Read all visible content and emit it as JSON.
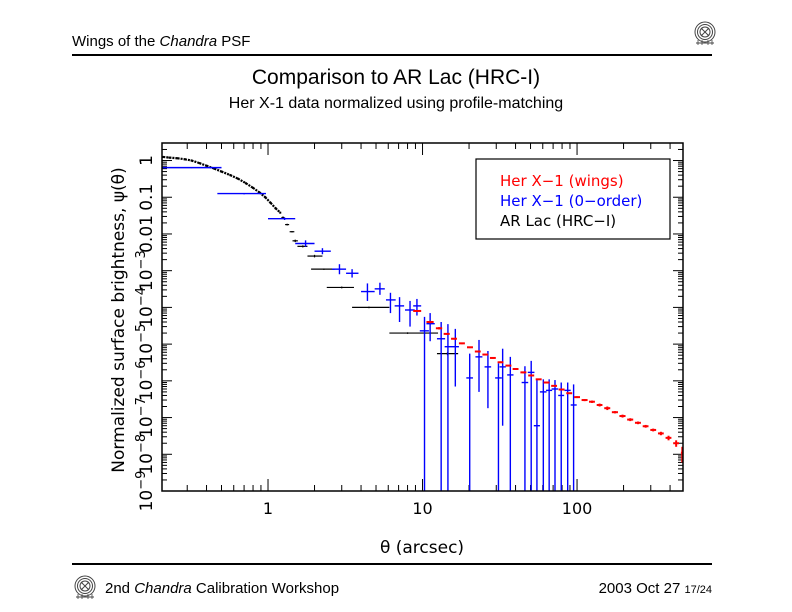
{
  "header": {
    "title_prefix": "Wings of the ",
    "title_italic": "Chandra",
    "title_suffix": " PSF",
    "logo": "chandra-logo-icon"
  },
  "slide": {
    "title": "Comparison to AR Lac (HRC-I)",
    "subtitle": "Her X-1 data normalized using profile-matching"
  },
  "footer": {
    "left_prefix": "2nd ",
    "left_italic": "Chandra",
    "left_suffix": " Calibration Workshop",
    "date": "2003 Oct 27",
    "page": "17/24",
    "logo": "chandra-logo-icon"
  },
  "chart_data": {
    "type": "scatter",
    "title": "",
    "xlabel": "θ (arcsec)",
    "ylabel": "Normalized surface brightness, ψ(θ)",
    "xscale": "log",
    "yscale": "log",
    "xlim": [
      0.206,
      485
    ],
    "ylim": [
      1e-09,
      3
    ],
    "x_ticks": [
      {
        "value": 1,
        "label": "1"
      },
      {
        "value": 10,
        "label": "10"
      },
      {
        "value": 100,
        "label": "100"
      }
    ],
    "y_ticks": [
      {
        "value": 1e-09,
        "base": "10",
        "exp": "−9"
      },
      {
        "value": 1e-08,
        "base": "10",
        "exp": "−8"
      },
      {
        "value": 1e-07,
        "base": "10",
        "exp": "−7"
      },
      {
        "value": 1e-06,
        "base": "10",
        "exp": "−6"
      },
      {
        "value": 1e-05,
        "base": "10",
        "exp": "−5"
      },
      {
        "value": 0.0001,
        "base": "10",
        "exp": "−4"
      },
      {
        "value": 0.001,
        "base": "10",
        "exp": "−3"
      },
      {
        "value": 0.01,
        "base": "0.01",
        "exp": ""
      },
      {
        "value": 0.1,
        "base": "0.1",
        "exp": ""
      },
      {
        "value": 1,
        "base": "1",
        "exp": ""
      }
    ],
    "legend": {
      "position": "top-right",
      "entries": [
        {
          "label": "Her X−1 (wings)",
          "color": "#ff0000"
        },
        {
          "label": "Her X−1 (0−order)",
          "color": "#0000ff"
        },
        {
          "label": "AR Lac (HRC−I)",
          "color": "#000000"
        }
      ]
    },
    "series": [
      {
        "name": "AR Lac (HRC−I) profile",
        "color": "#000000",
        "style": "dense",
        "points": [
          {
            "x": 0.21,
            "y": 1.25
          },
          {
            "x": 0.23,
            "y": 1.2
          },
          {
            "x": 0.26,
            "y": 1.15
          },
          {
            "x": 0.29,
            "y": 1.08
          },
          {
            "x": 0.32,
            "y": 1.0
          },
          {
            "x": 0.36,
            "y": 0.85
          },
          {
            "x": 0.4,
            "y": 0.72
          },
          {
            "x": 0.45,
            "y": 0.6
          },
          {
            "x": 0.5,
            "y": 0.5
          },
          {
            "x": 0.57,
            "y": 0.4
          },
          {
            "x": 0.64,
            "y": 0.32
          },
          {
            "x": 0.72,
            "y": 0.24
          },
          {
            "x": 0.8,
            "y": 0.18
          },
          {
            "x": 0.88,
            "y": 0.135
          },
          {
            "x": 0.96,
            "y": 0.1
          },
          {
            "x": 1.04,
            "y": 0.07
          },
          {
            "x": 1.12,
            "y": 0.05
          },
          {
            "x": 1.2,
            "y": 0.038
          }
        ]
      },
      {
        "name": "AR Lac (HRC−I) binned",
        "color": "#000000",
        "style": "errorbar",
        "points": [
          {
            "x": 1.25,
            "y": 0.028,
            "xlo": 1.22,
            "xhi": 1.28,
            "ylo": 0.026,
            "yhi": 0.03
          },
          {
            "x": 1.33,
            "y": 0.018,
            "xlo": 1.29,
            "xhi": 1.37,
            "ylo": 0.017,
            "yhi": 0.019
          },
          {
            "x": 1.43,
            "y": 0.0115,
            "xlo": 1.38,
            "xhi": 1.48,
            "ylo": 0.011,
            "yhi": 0.012
          },
          {
            "x": 1.5,
            "y": 0.0065,
            "xlo": 1.44,
            "xhi": 1.56,
            "ylo": 0.006,
            "yhi": 0.007
          },
          {
            "x": 1.68,
            "y": 0.0046,
            "xlo": 1.55,
            "xhi": 1.8,
            "ylo": 0.0043,
            "yhi": 0.0049
          },
          {
            "x": 2.0,
            "y": 0.0025,
            "xlo": 1.8,
            "xhi": 2.25,
            "ylo": 0.0023,
            "yhi": 0.0027
          },
          {
            "x": 2.3,
            "y": 0.0011,
            "xlo": 1.9,
            "xhi": 2.7,
            "ylo": 0.00105,
            "yhi": 0.00115
          },
          {
            "x": 3.0,
            "y": 0.00035,
            "xlo": 2.4,
            "xhi": 3.6,
            "ylo": 0.00033,
            "yhi": 0.00037
          },
          {
            "x": 4.5,
            "y": 0.0001,
            "xlo": 3.5,
            "xhi": 6.1,
            "ylo": 9.5e-05,
            "yhi": 0.000105
          },
          {
            "x": 8.0,
            "y": 2e-05,
            "xlo": 6.1,
            "xhi": 12.6,
            "ylo": 1.9e-05,
            "yhi": 2.1e-05
          },
          {
            "x": 14.5,
            "y": 5.5e-06,
            "xlo": 12.4,
            "xhi": 17.0,
            "ylo": 5e-06,
            "yhi": 6e-06
          }
        ]
      },
      {
        "name": "Her X−1 (0−order)",
        "color": "#0000ff",
        "style": "errorbar",
        "points": [
          {
            "x": 0.32,
            "y": 0.64,
            "xlo": 0.206,
            "xhi": 0.5,
            "ylo": 0.62,
            "yhi": 0.66
          },
          {
            "x": 0.7,
            "y": 0.126,
            "xlo": 0.47,
            "xhi": 0.97,
            "ylo": 0.12,
            "yhi": 0.13
          },
          {
            "x": 1.28,
            "y": 0.026,
            "xlo": 1.0,
            "xhi": 1.5,
            "ylo": 0.024,
            "yhi": 0.028
          },
          {
            "x": 1.75,
            "y": 0.0055,
            "xlo": 1.5,
            "xhi": 2.0,
            "ylo": 0.0045,
            "yhi": 0.0067
          },
          {
            "x": 2.25,
            "y": 0.0034,
            "xlo": 2.0,
            "xhi": 2.55,
            "ylo": 0.0028,
            "yhi": 0.0041
          },
          {
            "x": 2.9,
            "y": 0.0011,
            "xlo": 2.6,
            "xhi": 3.2,
            "ylo": 0.0008,
            "yhi": 0.0015
          },
          {
            "x": 3.5,
            "y": 0.00085,
            "xlo": 3.2,
            "xhi": 3.85,
            "ylo": 0.00065,
            "yhi": 0.0011
          },
          {
            "x": 4.4,
            "y": 0.00027,
            "xlo": 4.0,
            "xhi": 4.9,
            "ylo": 0.00015,
            "yhi": 0.00045
          },
          {
            "x": 5.3,
            "y": 0.00032,
            "xlo": 4.9,
            "xhi": 5.7,
            "ylo": 0.00022,
            "yhi": 0.00047
          },
          {
            "x": 6.2,
            "y": 0.00016,
            "xlo": 5.8,
            "xhi": 6.7,
            "ylo": 7e-05,
            "yhi": 0.00025
          },
          {
            "x": 7.1,
            "y": 0.00011,
            "xlo": 6.6,
            "xhi": 7.6,
            "ylo": 4e-05,
            "yhi": 0.00019
          },
          {
            "x": 8.3,
            "y": 8.5e-05,
            "xlo": 7.7,
            "xhi": 8.9,
            "ylo": 3e-05,
            "yhi": 0.00015
          },
          {
            "x": 9.2,
            "y": 0.00011,
            "xlo": 8.7,
            "xhi": 9.8,
            "ylo": 6e-05,
            "yhi": 0.00017
          },
          {
            "x": 10.3,
            "y": 2.3e-05,
            "xlo": 9.6,
            "xhi": 11.0,
            "ylo": 1e-09,
            "yhi": 5.5e-05
          },
          {
            "x": 11.2,
            "y": 3.6e-05,
            "xlo": 10.6,
            "xhi": 12.0,
            "ylo": 1.2e-05,
            "yhi": 7e-05
          },
          {
            "x": 13.2,
            "y": 1.4e-05,
            "xlo": 12.4,
            "xhi": 14.0,
            "ylo": 1e-09,
            "yhi": 4e-05
          },
          {
            "x": 14.6,
            "y": 8.5e-06,
            "xlo": 13.9,
            "xhi": 15.4,
            "ylo": 1e-09,
            "yhi": 3.5e-05
          },
          {
            "x": 16.3,
            "y": 8.5e-06,
            "xlo": 15.4,
            "xhi": 17.2,
            "ylo": 7e-07,
            "yhi": 2.6e-05
          },
          {
            "x": 20.2,
            "y": 1.2e-06,
            "xlo": 19.2,
            "xhi": 21.2,
            "ylo": 1e-09,
            "yhi": 5.5e-06
          },
          {
            "x": 23.2,
            "y": 4.5e-06,
            "xlo": 22.0,
            "xhi": 24.4,
            "ylo": 5e-07,
            "yhi": 1.3e-05
          },
          {
            "x": 26.5,
            "y": 2.4e-06,
            "xlo": 25.2,
            "xhi": 27.8,
            "ylo": 1.8e-07,
            "yhi": 6.5e-06
          },
          {
            "x": 31.0,
            "y": 1.2e-06,
            "xlo": 29.5,
            "xhi": 32.6,
            "ylo": 1e-09,
            "yhi": 3e-06
          },
          {
            "x": 33.0,
            "y": 2.4e-06,
            "xlo": 31.5,
            "xhi": 34.6,
            "ylo": 6e-08,
            "yhi": 7.5e-06
          },
          {
            "x": 37.0,
            "y": 1.45e-06,
            "xlo": 35.3,
            "xhi": 38.8,
            "ylo": 1e-09,
            "yhi": 4.5e-06
          },
          {
            "x": 46.0,
            "y": 9e-07,
            "xlo": 43.8,
            "xhi": 48.3,
            "ylo": 1e-09,
            "yhi": 2.5e-06
          },
          {
            "x": 50.5,
            "y": 1.7e-06,
            "xlo": 48.0,
            "xhi": 53.0,
            "ylo": 1e-09,
            "yhi": 3.5e-06
          },
          {
            "x": 55.0,
            "y": 6e-08,
            "xlo": 52.5,
            "xhi": 57.5,
            "ylo": 1e-09,
            "yhi": 1.1e-06
          },
          {
            "x": 60.5,
            "y": 5e-07,
            "xlo": 57.5,
            "xhi": 63.5,
            "ylo": 1e-09,
            "yhi": 1.1e-06
          },
          {
            "x": 66.0,
            "y": 5.5e-07,
            "xlo": 63.0,
            "xhi": 69.0,
            "ylo": 1e-09,
            "yhi": 1.1e-06
          },
          {
            "x": 72.0,
            "y": 6e-07,
            "xlo": 68.5,
            "xhi": 75.5,
            "ylo": 1e-09,
            "yhi": 1.05e-06
          },
          {
            "x": 79.0,
            "y": 4e-07,
            "xlo": 75.5,
            "xhi": 82.5,
            "ylo": 1e-09,
            "yhi": 9e-07
          },
          {
            "x": 87.0,
            "y": 5.5e-07,
            "xlo": 83.0,
            "xhi": 91.0,
            "ylo": 1e-09,
            "yhi": 9e-07
          },
          {
            "x": 95.0,
            "y": 2.2e-07,
            "xlo": 91.0,
            "xhi": 99.5,
            "ylo": 1e-09,
            "yhi": 8e-07
          }
        ]
      },
      {
        "name": "Her X−1 (wings)",
        "color": "#ff0000",
        "style": "errorbar",
        "points": [
          {
            "x": 9.2,
            "y": 8e-05,
            "xlo": 8.7,
            "xhi": 9.8,
            "ylo": 7.5e-05,
            "yhi": 8.5e-05
          },
          {
            "x": 11.2,
            "y": 4e-05,
            "xlo": 10.6,
            "xhi": 11.8,
            "ylo": 3.7e-05,
            "yhi": 4.3e-05
          },
          {
            "x": 12.8,
            "y": 2.7e-05,
            "xlo": 12.2,
            "xhi": 13.4,
            "ylo": 2.5e-05,
            "yhi": 2.9e-05
          },
          {
            "x": 14.3,
            "y": 1.9e-05,
            "xlo": 13.7,
            "xhi": 15.0,
            "ylo": 1.8e-05,
            "yhi": 2e-05
          },
          {
            "x": 16.0,
            "y": 1.4e-05,
            "xlo": 15.3,
            "xhi": 16.7,
            "ylo": 1.33e-05,
            "yhi": 1.47e-05
          },
          {
            "x": 18.0,
            "y": 1.05e-05,
            "xlo": 17.2,
            "xhi": 18.8,
            "ylo": 1e-05,
            "yhi": 1.1e-05
          },
          {
            "x": 20.3,
            "y": 8.2e-06,
            "xlo": 19.4,
            "xhi": 21.2,
            "ylo": 7.8e-06,
            "yhi": 8.6e-06
          },
          {
            "x": 22.8,
            "y": 6.3e-06,
            "xlo": 21.8,
            "xhi": 23.8,
            "ylo": 6e-06,
            "yhi": 6.6e-06
          },
          {
            "x": 25.5,
            "y": 5.2e-06,
            "xlo": 24.4,
            "xhi": 26.6,
            "ylo": 5e-06,
            "yhi": 5.4e-06
          },
          {
            "x": 28.5,
            "y": 4.2e-06,
            "xlo": 27.3,
            "xhi": 29.8,
            "ylo": 4e-06,
            "yhi": 4.4e-06
          },
          {
            "x": 32.0,
            "y": 3.2e-06,
            "xlo": 30.6,
            "xhi": 33.4,
            "ylo": 3.1e-06,
            "yhi": 3.4e-06
          },
          {
            "x": 36.0,
            "y": 2.6e-06,
            "xlo": 34.4,
            "xhi": 37.6,
            "ylo": 2.5e-06,
            "yhi": 2.7e-06
          },
          {
            "x": 40.0,
            "y": 2.1e-06,
            "xlo": 38.3,
            "xhi": 41.8,
            "ylo": 2e-06,
            "yhi": 2.2e-06
          },
          {
            "x": 45.0,
            "y": 1.7e-06,
            "xlo": 43.0,
            "xhi": 47.0,
            "ylo": 1.6e-06,
            "yhi": 1.8e-06
          },
          {
            "x": 50.5,
            "y": 1.4e-06,
            "xlo": 48.3,
            "xhi": 52.8,
            "ylo": 1.33e-06,
            "yhi": 1.47e-06
          },
          {
            "x": 56.5,
            "y": 1.1e-06,
            "xlo": 54.0,
            "xhi": 59.0,
            "ylo": 1.05e-06,
            "yhi": 1.15e-06
          },
          {
            "x": 63.5,
            "y": 9e-07,
            "xlo": 60.7,
            "xhi": 66.3,
            "ylo": 8.6e-07,
            "yhi": 9.4e-07
          },
          {
            "x": 71.0,
            "y": 7.3e-07,
            "xlo": 68.0,
            "xhi": 74.2,
            "ylo": 7e-07,
            "yhi": 7.6e-07
          },
          {
            "x": 79.5,
            "y": 5.8e-07,
            "xlo": 76.0,
            "xhi": 83.0,
            "ylo": 5.5e-07,
            "yhi": 6.1e-07
          },
          {
            "x": 89.0,
            "y": 4.6e-07,
            "xlo": 85.2,
            "xhi": 93.0,
            "ylo": 4.4e-07,
            "yhi": 4.8e-07
          },
          {
            "x": 100.0,
            "y": 3.6e-07,
            "xlo": 95.7,
            "xhi": 104.5,
            "ylo": 3.4e-07,
            "yhi": 3.8e-07
          },
          {
            "x": 112.0,
            "y": 3e-07,
            "xlo": 107.0,
            "xhi": 117.0,
            "ylo": 2.8e-07,
            "yhi": 3.2e-07
          },
          {
            "x": 125.0,
            "y": 2.7e-07,
            "xlo": 119.5,
            "xhi": 130.5,
            "ylo": 2.5e-07,
            "yhi": 2.9e-07
          },
          {
            "x": 140.0,
            "y": 2.2e-07,
            "xlo": 134.0,
            "xhi": 146.0,
            "ylo": 2e-07,
            "yhi": 2.4e-07
          },
          {
            "x": 157.0,
            "y": 1.8e-07,
            "xlo": 150.0,
            "xhi": 164.0,
            "ylo": 1.6e-07,
            "yhi": 2e-07
          },
          {
            "x": 176.0,
            "y": 1.4e-07,
            "xlo": 168.0,
            "xhi": 184.0,
            "ylo": 1.3e-07,
            "yhi": 1.5e-07
          },
          {
            "x": 197.0,
            "y": 1.1e-07,
            "xlo": 188.0,
            "xhi": 206.0,
            "ylo": 1e-07,
            "yhi": 1.2e-07
          },
          {
            "x": 221.0,
            "y": 8.8e-08,
            "xlo": 211.0,
            "xhi": 231.0,
            "ylo": 8e-08,
            "yhi": 9.6e-08
          },
          {
            "x": 248.0,
            "y": 7.2e-08,
            "xlo": 237.0,
            "xhi": 259.0,
            "ylo": 6.6e-08,
            "yhi": 7.8e-08
          },
          {
            "x": 278.0,
            "y": 5.8e-08,
            "xlo": 266.0,
            "xhi": 290.0,
            "ylo": 5.3e-08,
            "yhi": 6.3e-08
          },
          {
            "x": 311.0,
            "y": 4.6e-08,
            "xlo": 298.0,
            "xhi": 325.0,
            "ylo": 4.2e-08,
            "yhi": 5e-08
          },
          {
            "x": 349.0,
            "y": 3.7e-08,
            "xlo": 334.0,
            "xhi": 364.0,
            "ylo": 3.3e-08,
            "yhi": 4.1e-08
          },
          {
            "x": 391.0,
            "y": 2.8e-08,
            "xlo": 374.0,
            "xhi": 408.0,
            "ylo": 2.4e-08,
            "yhi": 3.2e-08
          },
          {
            "x": 438.0,
            "y": 2e-08,
            "xlo": 419.0,
            "xhi": 457.0,
            "ylo": 1.6e-08,
            "yhi": 2.4e-08
          },
          {
            "x": 480.0,
            "y": 1.1e-08,
            "xlo": 470.0,
            "xhi": 485.0,
            "ylo": 6e-09,
            "yhi": 1.6e-08
          }
        ]
      }
    ]
  }
}
